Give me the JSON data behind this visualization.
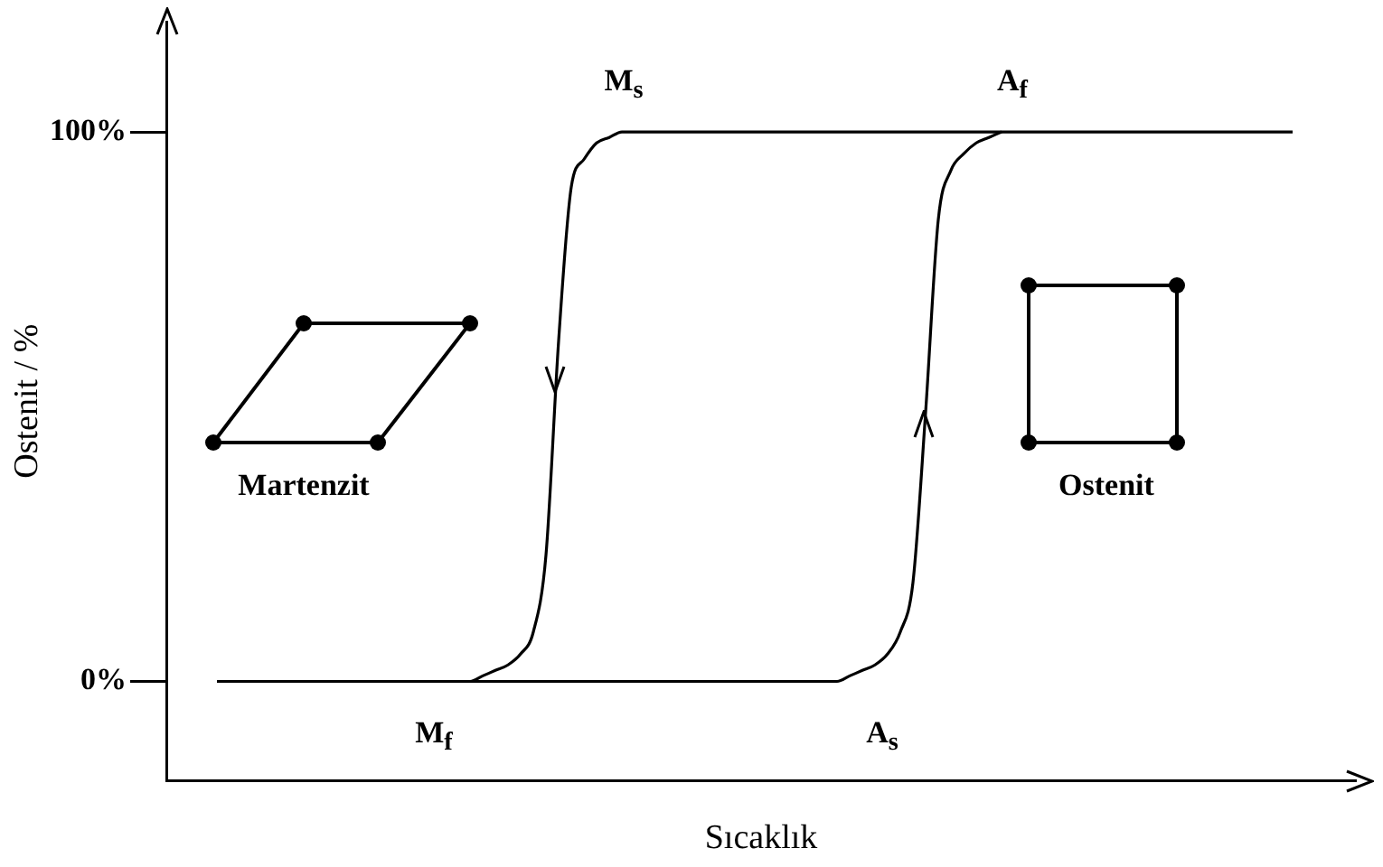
{
  "chart_data": {
    "type": "line",
    "xlabel": "Sıcaklık",
    "ylabel": "Ostenit / %",
    "categories": [
      null,
      null,
      null,
      null,
      null,
      null,
      null,
      null,
      null,
      null,
      null,
      null,
      null,
      null,
      null,
      null,
      null,
      null,
      null,
      null,
      null,
      null,
      null,
      null,
      null,
      null,
      null,
      null,
      null,
      null,
      null,
      null,
      null,
      null,
      null,
      null,
      null,
      null,
      null,
      null,
      null,
      null,
      null,
      null,
      null,
      null,
      null,
      null,
      null,
      null,
      null,
      null,
      null,
      null,
      null,
      null,
      null,
      null,
      null,
      null,
      null,
      null,
      null,
      null,
      null,
      null,
      null,
      null,
      null,
      null,
      null,
      null,
      null,
      null,
      null,
      null,
      null,
      null,
      null,
      null,
      null,
      null,
      null,
      null,
      null,
      null,
      null,
      null,
      null,
      null,
      null,
      null,
      null,
      null,
      null
    ],
    "series": [
      {
        "color": "#000000",
        "values": [
          null,
          null,
          null,
          null,
          0,
          0,
          0,
          0,
          0,
          0,
          0,
          0,
          0,
          0,
          0,
          0,
          0,
          0,
          0,
          0,
          0,
          0,
          0,
          0,
          0,
          1,
          2,
          3,
          5,
          9,
          23,
          62,
          90,
          95,
          98,
          99,
          100,
          100,
          100,
          100,
          100,
          100,
          100,
          100,
          100,
          100,
          100,
          100,
          100,
          100,
          100,
          100,
          100,
          100,
          100,
          100,
          100,
          100,
          100,
          100,
          100,
          100,
          100,
          100,
          100,
          100,
          100,
          100,
          100,
          100,
          100,
          100,
          100,
          100,
          100,
          100,
          100,
          100,
          100,
          100,
          100,
          100,
          100,
          100,
          100,
          100,
          100,
          100,
          100,
          100,
          null,
          null,
          null,
          null,
          null
        ]
      },
      {
        "color": "#000000",
        "values": [
          null,
          null,
          null,
          null,
          null,
          null,
          null,
          null,
          null,
          null,
          null,
          null,
          null,
          null,
          null,
          null,
          null,
          null,
          null,
          null,
          null,
          null,
          null,
          null,
          0,
          0,
          0,
          0,
          0,
          0,
          0,
          0,
          0,
          0,
          0,
          0,
          0,
          0,
          0,
          0,
          0,
          0,
          0,
          0,
          0,
          0,
          0,
          0,
          0,
          0,
          0,
          0,
          0,
          0,
          1,
          2,
          3,
          5,
          9,
          18,
          49,
          84,
          93,
          96,
          98,
          99,
          100,
          null,
          null,
          null,
          null,
          null,
          null,
          null,
          null,
          null,
          null,
          null,
          null,
          null,
          null,
          null,
          null,
          null,
          null,
          null,
          null,
          null,
          null,
          null,
          null,
          null,
          null,
          null,
          null
        ]
      }
    ],
    "ylim": [
      -18,
      120
    ],
    "yticks": [
      {
        "value": 0,
        "label": "0%"
      },
      {
        "value": 100,
        "label": "100%"
      }
    ],
    "tick_labels": "y",
    "grid": false,
    "legend": false,
    "marker": "none",
    "line_style": "solid",
    "annotations": [
      "M$_{s}$",
      "A$_{f}$",
      "M$_{f}$",
      "A$_{s}$",
      "Martenzit",
      "Ostenit"
    ]
  }
}
